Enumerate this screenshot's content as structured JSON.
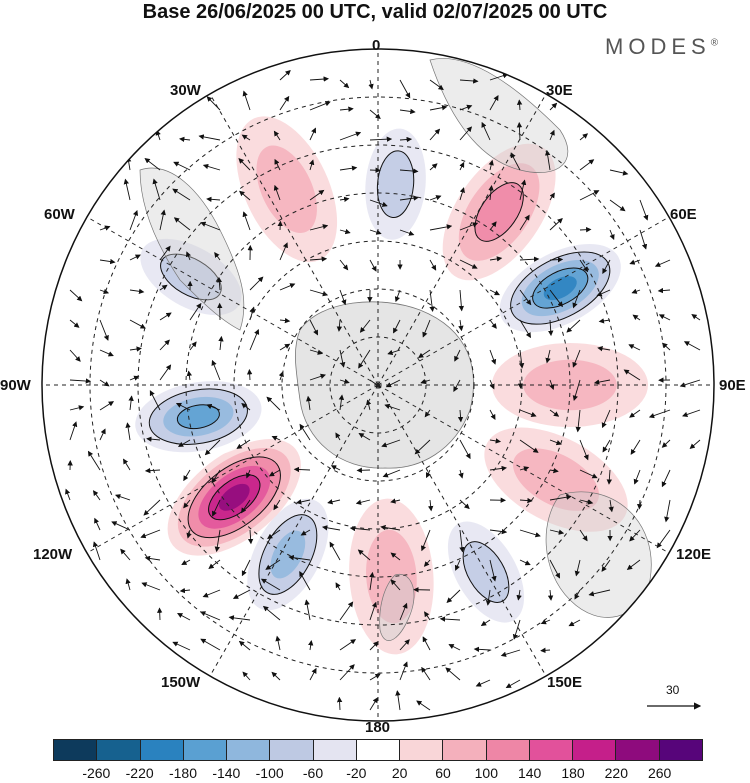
{
  "title": "Base 26/06/2025 00 UTC, valid 02/07/2025 00 UTC",
  "brand": "MODES",
  "brand_mark": "®",
  "longitude_labels": {
    "top": "0",
    "top_right": "30E",
    "right_upper": "60E",
    "right": "90E",
    "right_lower": "120E",
    "bottom_right": "150E",
    "bottom": "180",
    "bottom_left": "150W",
    "left_lower": "120W",
    "left": "90W",
    "left_upper": "60W",
    "top_left": "30W"
  },
  "wind_reference": "30",
  "colorbar": {
    "colors": [
      "#0d3a5c",
      "#16618f",
      "#2a82bf",
      "#5aa0d2",
      "#8fb7dd",
      "#bec9e3",
      "#e4e4f1",
      "#ffffff",
      "#f9d6d8",
      "#f4b0bc",
      "#ee86a6",
      "#e2519b",
      "#c51f8a",
      "#8e0b7d",
      "#57057a"
    ],
    "labels": [
      "-260",
      "-220",
      "-180",
      "-140",
      "-100",
      "-60",
      "-20",
      "20",
      "60",
      "100",
      "140",
      "180",
      "220",
      "260"
    ]
  },
  "anomalies": [
    {
      "lon": 5,
      "lat": -48,
      "value": -110
    },
    {
      "lon": 35,
      "lat": -46,
      "value": 120
    },
    {
      "lon": 62,
      "lat": -47,
      "value": -240
    },
    {
      "lon": 90,
      "lat": -50,
      "value": 90
    },
    {
      "lon": 118,
      "lat": -48,
      "value": 80
    },
    {
      "lon": 150,
      "lat": -45,
      "value": -130
    },
    {
      "lon": 176,
      "lat": -50,
      "value": 70
    },
    {
      "lon": -152,
      "lat": -50,
      "value": -170
    },
    {
      "lon": -128,
      "lat": -52,
      "value": 240
    },
    {
      "lon": -100,
      "lat": -52,
      "value": -200
    },
    {
      "lon": -60,
      "lat": -45,
      "value": -110
    },
    {
      "lon": -25,
      "lat": -45,
      "value": 60
    }
  ]
}
